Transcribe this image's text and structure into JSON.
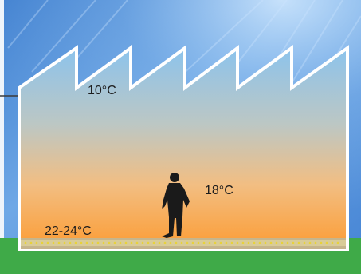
{
  "diagram": {
    "labels": {
      "roof_temp": "10°C",
      "person_temp": "18°C",
      "floor_temp": "22-24°C"
    },
    "colors": {
      "sky_top": "#4f8fd9",
      "sky_bottom": "#8ec0f0",
      "interior_top": "#8fc4ea",
      "interior_bottom": "#fba23c",
      "building_outline": "#ffffff",
      "ground": "#3faa48",
      "floor_heating_dots": "#e8d23a",
      "silhouette": "#1a1a1a"
    },
    "icons": {
      "person": "person-silhouette-icon",
      "floor_heating": "underfloor-heating-dots-icon"
    }
  }
}
